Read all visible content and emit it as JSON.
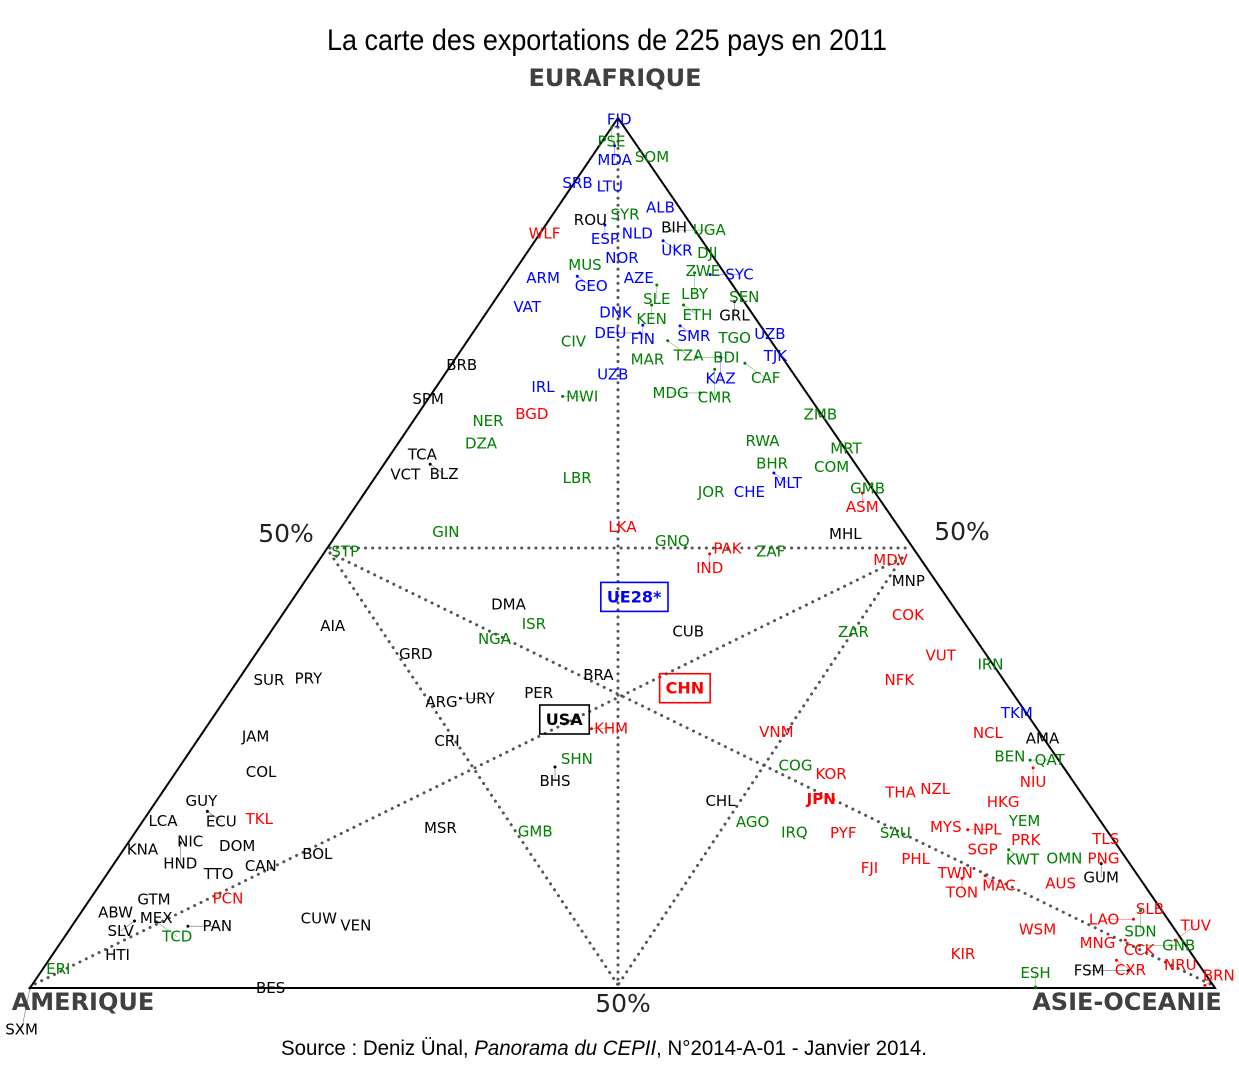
{
  "chart_data": {
    "type": "scatter",
    "subtype": "ternary",
    "title": "La carte des exportations de 225 pays en 2011",
    "axes": {
      "top": "EURAFRIQUE",
      "left": "AMERIQUE",
      "right": "ASIE-OCEANIE"
    },
    "midpoint_labels": {
      "left": "50%",
      "right": "50%",
      "bottom": "50%"
    },
    "source": {
      "prefix": "Source : Deniz Ünal, ",
      "italic": "Panorama du CEPII",
      "suffix": ", N°2014-A-01 - Janvier 2014."
    },
    "units": "share of exports (%) to Eurafrique (e), Asie-Océanie (a); Amérique = 100 - e - a",
    "colors": {
      "b": "#0000ff",
      "g": "#008000",
      "r": "#ff0000",
      "k": "#000000"
    },
    "boxed": [
      "UE28*",
      "CHN",
      "USA"
    ],
    "points": [
      [
        "FJD",
        99.8,
        0.2,
        "b"
      ],
      [
        "PSE",
        98.9,
        0.0,
        "g"
      ],
      [
        "MDA",
        96.8,
        1.3,
        "b"
      ],
      [
        "SOM",
        95.5,
        5.1,
        "g"
      ],
      [
        "SRB",
        92.5,
        0.3,
        "b"
      ],
      [
        "LTU",
        92.1,
        2.4,
        "b"
      ],
      [
        "ALB",
        89.7,
        8.7,
        "b"
      ],
      [
        "SYR",
        88.9,
        6.1,
        "g"
      ],
      [
        "ROU",
        88.3,
        4.3,
        "k"
      ],
      [
        "ESP",
        87.7,
        5.0,
        "b"
      ],
      [
        "NLD",
        86.7,
        7.4,
        "b"
      ],
      [
        "BIH",
        88.0,
        10.1,
        "k"
      ],
      [
        "UGA",
        87.1,
        10.8,
        "g"
      ],
      [
        "UKR",
        85.9,
        10.8,
        "b"
      ],
      [
        "WLF",
        86.7,
        0.4,
        "r"
      ],
      [
        "DJI",
        84.5,
        14.4,
        "g"
      ],
      [
        "ZWE",
        83.2,
        15.5,
        "g"
      ],
      [
        "LBY",
        82.2,
        15.3,
        "g"
      ],
      [
        "SYC",
        82.0,
        16.7,
        "b"
      ],
      [
        "MUS",
        83.1,
        5.6,
        "g"
      ],
      [
        "NOR",
        83.9,
        7.5,
        "b"
      ],
      [
        "ARM",
        82.2,
        3.1,
        "b"
      ],
      [
        "GEO",
        81.8,
        5.6,
        "b"
      ],
      [
        "AZE",
        82.2,
        10.0,
        "b"
      ],
      [
        "SLE",
        80.8,
        12.8,
        "g"
      ],
      [
        "KEN",
        78.5,
        13.5,
        "g"
      ],
      [
        "ETH",
        78.5,
        16.2,
        "g"
      ],
      [
        "SEN",
        80.0,
        20.0,
        "g"
      ],
      [
        "GRL",
        78.9,
        20.3,
        "k"
      ],
      [
        "DNK",
        78.2,
        11.2,
        "b"
      ],
      [
        "VAT",
        78.3,
        3.1,
        "b"
      ],
      [
        "FIN",
        76.2,
        13.9,
        "b"
      ],
      [
        "SMR",
        76.1,
        17.1,
        "b"
      ],
      [
        "DEU",
        75.3,
        14.1,
        "b"
      ],
      [
        "TZA",
        74.4,
        16.9,
        "g"
      ],
      [
        "TGO",
        74.7,
        22.4,
        "g"
      ],
      [
        "UZB",
        75.2,
        24.3,
        "b"
      ],
      [
        "TJK",
        73.2,
        26.0,
        "b"
      ],
      [
        "CIV",
        74.3,
        9.0,
        "g"
      ],
      [
        "MAR",
        72.8,
        15.4,
        "g"
      ],
      [
        "BDI",
        72.5,
        20.3,
        "g"
      ],
      [
        "KAZ",
        72.5,
        22.3,
        "b"
      ],
      [
        "CMR",
        71.1,
        22.5,
        "g"
      ],
      [
        "CAF",
        71.8,
        24.7,
        "g"
      ],
      [
        "UZB",
        70.5,
        14.2,
        "b"
      ],
      [
        "MDG",
        68.4,
        22.6,
        "g"
      ],
      [
        "BRB",
        71.6,
        0.9,
        "k"
      ],
      [
        "SPM",
        67.7,
        0.0,
        "k"
      ],
      [
        "IRL",
        69.1,
        9.0,
        "b"
      ],
      [
        "MWI",
        68.0,
        11.2,
        "g"
      ],
      [
        "BGD",
        66.0,
        9.6,
        "r"
      ],
      [
        "NER",
        65.2,
        6.3,
        "g"
      ],
      [
        "DZA",
        62.6,
        7.0,
        "g"
      ],
      [
        "ZMB",
        65.9,
        34.0,
        "g"
      ],
      [
        "RWA",
        62.9,
        30.6,
        "g"
      ],
      [
        "MRT",
        62.0,
        38.1,
        "g"
      ],
      [
        "BHR",
        60.3,
        32.7,
        "g"
      ],
      [
        "MLT",
        59.2,
        33.4,
        "b"
      ],
      [
        "COM",
        59.9,
        37.1,
        "g"
      ],
      [
        "TCA",
        61.3,
        2.7,
        "k"
      ],
      [
        "VCT",
        59.8,
        2.0,
        "k"
      ],
      [
        "BLZ",
        60.2,
        3.9,
        "k"
      ],
      [
        "LBR",
        58.6,
        17.1,
        "g"
      ],
      [
        "JOR",
        57.0,
        29.2,
        "g"
      ],
      [
        "CHE",
        57.0,
        31.6,
        "b"
      ],
      [
        "GMB",
        57.4,
        42.2,
        "g"
      ],
      [
        "ASM",
        56.9,
        42.0,
        "r"
      ],
      [
        "GIN",
        52.4,
        9.1,
        "g"
      ],
      [
        "LKA",
        53.0,
        23.7,
        "r"
      ],
      [
        "GNQ",
        51.4,
        28.7,
        "g"
      ],
      [
        "PAK",
        50.5,
        33.8,
        "r"
      ],
      [
        "IND",
        49.9,
        32.6,
        "r"
      ],
      [
        "ZAF",
        50.2,
        37.6,
        "g"
      ],
      [
        "MHL",
        52.2,
        42.9,
        "k"
      ],
      [
        "STP",
        50.2,
        1.7,
        "g"
      ],
      [
        "MDV",
        49.2,
        48.2,
        "r"
      ],
      [
        "MNP",
        46.8,
        50.9,
        "k"
      ],
      [
        "COK",
        42.9,
        52.8,
        "r"
      ],
      [
        "DMA",
        44.1,
        18.5,
        "k"
      ],
      [
        "ISR",
        42.4,
        20.9,
        "g"
      ],
      [
        "UE28*",
        44.9,
        28.7,
        "b"
      ],
      [
        "CUB",
        41.0,
        35.2,
        "k"
      ],
      [
        "AIA",
        41.6,
        4.9,
        "k"
      ],
      [
        "NGA",
        40.1,
        19.3,
        "g"
      ],
      [
        "ZAR",
        40.9,
        49.2,
        "g"
      ],
      [
        "GRD",
        38.4,
        13.5,
        "k"
      ],
      [
        "VUT",
        38.2,
        57.9,
        "r"
      ],
      [
        "IRN",
        37.2,
        62.6,
        "g"
      ],
      [
        "SUR",
        35.4,
        2.6,
        "k"
      ],
      [
        "PRY",
        35.6,
        5.0,
        "k"
      ],
      [
        "ARG",
        32.9,
        18.4,
        "k"
      ],
      [
        "URY",
        33.3,
        19.8,
        "k"
      ],
      [
        "BRA",
        36.0,
        30.1,
        "k"
      ],
      [
        "PER",
        33.1,
        26.5,
        "k"
      ],
      [
        "CHN",
        34.4,
        38.2,
        "r"
      ],
      [
        "NFK",
        35.4,
        55.8,
        "r"
      ],
      [
        "USA",
        30.8,
        29.8,
        "k"
      ],
      [
        "KHM",
        29.8,
        32.6,
        "r"
      ],
      [
        "TKM",
        31.6,
        67.6,
        "b"
      ],
      [
        "AMA",
        28.7,
        71.2,
        "k"
      ],
      [
        "JAM",
        28.9,
        4.7,
        "k"
      ],
      [
        "CRI",
        28.4,
        21.1,
        "k"
      ],
      [
        "VNM",
        29.4,
        48.4,
        "r"
      ],
      [
        "NCL",
        29.3,
        66.3,
        "r"
      ],
      [
        "BEN",
        27.4,
        69.1,
        "g"
      ],
      [
        "QAT",
        26.2,
        71.4,
        "g"
      ],
      [
        "NIU",
        25.3,
        72.1,
        "r"
      ],
      [
        "SHN",
        26.3,
        33.1,
        "g"
      ],
      [
        "BHS",
        25.4,
        31.7,
        "k"
      ],
      [
        "COL",
        24.8,
        7.2,
        "k"
      ],
      [
        "COG",
        25.6,
        51.9,
        "g"
      ],
      [
        "KOR",
        24.6,
        55.4,
        "r"
      ],
      [
        "THA",
        22.5,
        62.3,
        "r"
      ],
      [
        "NZL",
        22.9,
        64.2,
        "r"
      ],
      [
        "HKG",
        22.2,
        71.1,
        "r"
      ],
      [
        "GUY",
        21.5,
        3.8,
        "k"
      ],
      [
        "CHL",
        21.5,
        47.6,
        "k"
      ],
      [
        "JPN",
        21.7,
        56.0,
        "r"
      ],
      [
        "YEM",
        20.0,
        74.0,
        "g"
      ],
      [
        "ECU",
        20.3,
        4.9,
        "k"
      ],
      [
        "TKL",
        19.4,
        8.9,
        "r"
      ],
      [
        "LCA",
        19.2,
        1.7,
        "k"
      ],
      [
        "AGO",
        19.1,
        51.5,
        "g"
      ],
      [
        "MYS",
        18.5,
        68.1,
        "r"
      ],
      [
        "NPL",
        18.2,
        70.1,
        "r"
      ],
      [
        "IRQ",
        17.9,
        54.8,
        "g"
      ],
      [
        "PYF",
        17.8,
        59.8,
        "r"
      ],
      [
        "SAU",
        17.8,
        64.2,
        "g"
      ],
      [
        "PRK",
        17.8,
        75.2,
        "r"
      ],
      [
        "MSR",
        18.4,
        25.5,
        "k"
      ],
      [
        "GMB",
        18.0,
        33.7,
        "g"
      ],
      [
        "NIC",
        17.4,
        4.3,
        "k"
      ],
      [
        "HND",
        16.7,
        4.4,
        "k"
      ],
      [
        "DOM",
        16.3,
        9.4,
        "k"
      ],
      [
        "SGP",
        16.7,
        72.1,
        "r"
      ],
      [
        "KWT",
        15.9,
        74.7,
        "g"
      ],
      [
        "TLS",
        17.1,
        82.3,
        "r"
      ],
      [
        "KNA",
        15.9,
        1.6,
        "k"
      ],
      [
        "BOL",
        15.4,
        16.6,
        "k"
      ],
      [
        "PHL",
        14.8,
        67.4,
        "r"
      ],
      [
        "OMN",
        14.9,
        79.9,
        "g"
      ],
      [
        "PNG",
        14.9,
        83.2,
        "r"
      ],
      [
        "GUM",
        14.3,
        83.3,
        "k"
      ],
      [
        "FJI",
        13.8,
        64.0,
        "r"
      ],
      [
        "TTO",
        13.1,
        8.6,
        "k"
      ],
      [
        "CAN",
        14.0,
        11.7,
        "k"
      ],
      [
        "TWN",
        13.2,
        70.7,
        "r"
      ],
      [
        "TON",
        12.6,
        72.4,
        "r"
      ],
      [
        "MAC",
        12.9,
        74.2,
        "r"
      ],
      [
        "AUS",
        12.6,
        81.3,
        "r"
      ],
      [
        "GTM",
        10.2,
        5.4,
        "k"
      ],
      [
        "PCN",
        10.3,
        11.6,
        "r"
      ],
      [
        "ABW",
        8.7,
        2.9,
        "k"
      ],
      [
        "MEX",
        8.6,
        5.8,
        "k"
      ],
      [
        "SLV",
        7.7,
        5.0,
        "k"
      ],
      [
        "TCD",
        7.6,
        6.9,
        "g"
      ],
      [
        "PAN",
        7.1,
        9.8,
        "k"
      ],
      [
        "CUW",
        8.0,
        20.4,
        "k"
      ],
      [
        "VEN",
        7.2,
        23.1,
        "k"
      ],
      [
        "SLB",
        9.1,
        90.0,
        "r"
      ],
      [
        "SDN",
        8.9,
        89.3,
        "g"
      ],
      [
        "LAO",
        7.9,
        89.2,
        "r"
      ],
      [
        "WSM",
        6.7,
        81.7,
        "r"
      ],
      [
        "MNG",
        5.2,
        87.5,
        "r"
      ],
      [
        "CCK",
        5.5,
        89.7,
        "r"
      ],
      [
        "GNB",
        4.9,
        91.2,
        "g"
      ],
      [
        "TUV",
        5.5,
        93.9,
        "r"
      ],
      [
        "KIR",
        3.9,
        76.8,
        "r"
      ],
      [
        "HTI",
        3.8,
        5.5,
        "k"
      ],
      [
        "CXR",
        3.2,
        90.1,
        "r"
      ],
      [
        "NRU",
        3.2,
        94.9,
        "r"
      ],
      [
        "FSM",
        2.0,
        91.7,
        "k"
      ],
      [
        "ERI",
        2.2,
        1.3,
        "g"
      ],
      [
        "SXM",
        0.0,
        0.0,
        "k"
      ],
      [
        "BES",
        0.0,
        20.3,
        "k"
      ],
      [
        "ESH",
        0.1,
        84.8,
        "g"
      ],
      [
        "BRN",
        0.3,
        99.0,
        "r"
      ]
    ]
  }
}
